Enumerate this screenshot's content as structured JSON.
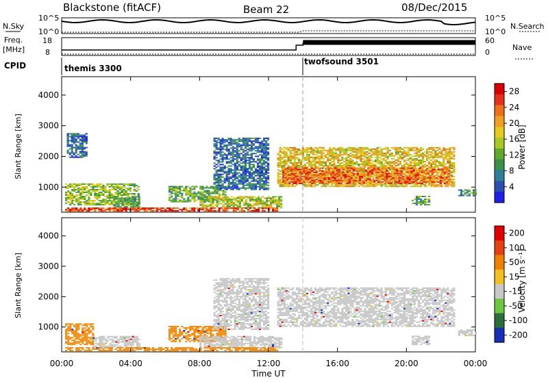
{
  "header": {
    "title": "Blackstone (fitACF)",
    "beam": "Beam 22",
    "date": "08/Dec/2015"
  },
  "top_panels": {
    "nsky_label": "N.Sky",
    "nsky_ticks": [
      "10^5",
      "10^0"
    ],
    "nsearch_label": "N.Search",
    "nsearch_ticks": [
      "10^5",
      "10^0"
    ],
    "freq_label": "Freq.",
    "freq_unit": "[MHz]",
    "freq_ticks": [
      "18",
      "8"
    ],
    "nave_label": "Nave",
    "nave_ticks": [
      "60",
      "0"
    ],
    "cpid_label": "CPID",
    "cpid_segments": [
      {
        "name": "themis 3300",
        "start_hour": 0,
        "end_hour": 14
      },
      {
        "name": "twofsound 3501",
        "start_hour": 14,
        "end_hour": 24
      }
    ]
  },
  "chart_data": [
    {
      "type": "heatmap",
      "title": "Power",
      "xlabel": "Time UT",
      "ylabel": "Slant Range [km]",
      "x_ticks": [
        "00:00",
        "04:00",
        "08:00",
        "12:00",
        "16:00",
        "20:00",
        "00:00"
      ],
      "y_ticks": [
        "1000",
        "2000",
        "3000",
        "4000"
      ],
      "xlim_hours": [
        0,
        24
      ],
      "ylim_km": [
        180,
        4600
      ],
      "colorbar": {
        "label": "Power [dB]",
        "ticks": [
          "4",
          "8",
          "12",
          "16",
          "20",
          "24",
          "28"
        ],
        "range": [
          0,
          30
        ],
        "colors": [
          "#1f1fe8",
          "#2a4fb0",
          "#2f7f9a",
          "#3a8f4a",
          "#5faa2e",
          "#a8c822",
          "#e8c81a",
          "#f0a020",
          "#f07018",
          "#e83018",
          "#d80000"
        ]
      },
      "regions": [
        {
          "t0": 0.2,
          "t1": 4.5,
          "r0": 400,
          "r1": 1100,
          "level": 0.45
        },
        {
          "t0": 0.3,
          "t1": 1.4,
          "r0": 1950,
          "r1": 2750,
          "level": 0.2
        },
        {
          "t0": 3.0,
          "t1": 4.5,
          "r0": 250,
          "r1": 700,
          "level": 0.35
        },
        {
          "t0": 6.2,
          "t1": 9.5,
          "r0": 500,
          "r1": 1000,
          "level": 0.4
        },
        {
          "t0": 8.0,
          "t1": 12.7,
          "r0": 300,
          "r1": 700,
          "level": 0.5
        },
        {
          "t0": 8.8,
          "t1": 12.0,
          "r0": 900,
          "r1": 2600,
          "level": 0.2
        },
        {
          "t0": 12.5,
          "t1": 22.8,
          "r0": 1000,
          "r1": 2300,
          "level": 0.6
        },
        {
          "t0": 12.8,
          "t1": 22.5,
          "r0": 1100,
          "r1": 1600,
          "level": 0.78
        },
        {
          "t0": 0.2,
          "t1": 12.5,
          "r0": 200,
          "r1": 330,
          "level": 0.85
        },
        {
          "t0": 20.3,
          "t1": 21.3,
          "r0": 400,
          "r1": 700,
          "level": 0.35
        },
        {
          "t0": 23.0,
          "t1": 24.0,
          "r0": 700,
          "r1": 900,
          "level": 0.3
        }
      ]
    },
    {
      "type": "heatmap",
      "title": "Velocity",
      "xlabel": "Time UT",
      "ylabel": "Slant Range [km]",
      "x_ticks": [
        "00:00",
        "04:00",
        "08:00",
        "12:00",
        "16:00",
        "20:00",
        "00:00"
      ],
      "y_ticks": [
        "1000",
        "2000",
        "3000",
        "4000"
      ],
      "xlim_hours": [
        0,
        24
      ],
      "ylim_km": [
        180,
        4600
      ],
      "colorbar": {
        "label": "Velocity [m s⁻¹]",
        "ticks": [
          "200",
          "100",
          "50",
          "15",
          "-15",
          "-50",
          "-100",
          "-200"
        ],
        "colors": [
          "#1a2fb8",
          "#2a6f3a",
          "#6cc640",
          "#c8c8c8",
          "#f0c020",
          "#f08000",
          "#e84010",
          "#e00000"
        ]
      },
      "regions": [
        {
          "t0": 0.2,
          "t1": 1.8,
          "r0": 400,
          "r1": 1100,
          "color": "orange"
        },
        {
          "t0": 1.8,
          "t1": 4.5,
          "r0": 300,
          "r1": 700,
          "color": "grey"
        },
        {
          "t0": 6.2,
          "t1": 9.5,
          "r0": 500,
          "r1": 1000,
          "color": "orange"
        },
        {
          "t0": 8.0,
          "t1": 12.7,
          "r0": 300,
          "r1": 700,
          "color": "grey"
        },
        {
          "t0": 8.8,
          "t1": 12.0,
          "r0": 900,
          "r1": 2600,
          "color": "grey"
        },
        {
          "t0": 12.5,
          "t1": 22.8,
          "r0": 1000,
          "r1": 2300,
          "color": "grey"
        },
        {
          "t0": 0.2,
          "t1": 12.5,
          "r0": 200,
          "r1": 330,
          "color": "orange"
        },
        {
          "t0": 20.3,
          "t1": 21.3,
          "r0": 400,
          "r1": 700,
          "color": "grey"
        },
        {
          "t0": 23.0,
          "t1": 24.0,
          "r0": 700,
          "r1": 900,
          "color": "grey"
        }
      ]
    }
  ]
}
